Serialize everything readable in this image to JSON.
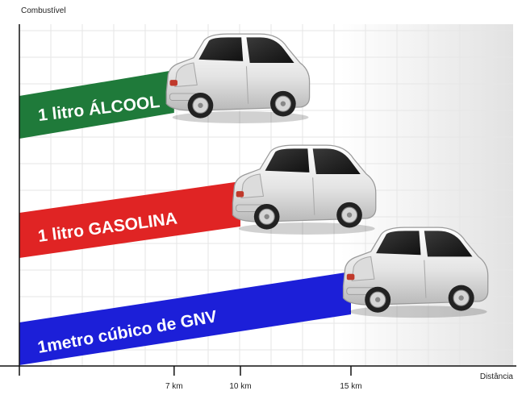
{
  "y_axis_label": "Combustível",
  "x_axis_label": "Distância",
  "ticks": [
    {
      "label": "7 km",
      "value": 7
    },
    {
      "label": "10 km",
      "value": 10
    },
    {
      "label": "15 km",
      "value": 15
    }
  ],
  "bands": [
    {
      "label": "1 litro ÁLCOOL",
      "color": "#1f7a3a",
      "distance_km": 7
    },
    {
      "label": "1 litro  GASOLINA",
      "color": "#e02424",
      "distance_km": 10
    },
    {
      "label": "1metro cúbico de GNV",
      "color": "#1c1fd8",
      "distance_km": 15
    }
  ],
  "colors": {
    "grid": "#e6e6e6",
    "axis": "#111111",
    "car_body": "#e9e9e9"
  }
}
